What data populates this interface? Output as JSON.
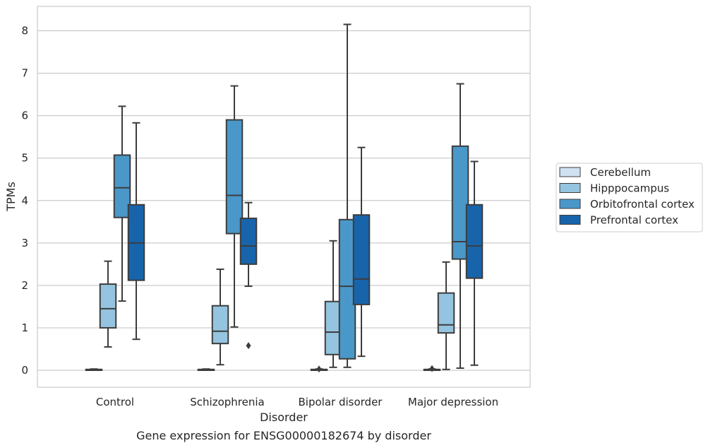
{
  "caption": "Gene expression for ENSG00000182674 by disorder",
  "chart_data": {
    "type": "box",
    "xlabel": "Disorder",
    "ylabel": "TPMs",
    "ylim": [
      -0.4,
      8.6
    ],
    "yticks": [
      0,
      1,
      2,
      3,
      4,
      5,
      6,
      7,
      8
    ],
    "grid": "horizontal",
    "legend_position": "right",
    "categories": [
      "Control",
      "Schizophrenia",
      "Bipolar disorder",
      "Major depression"
    ],
    "series": [
      {
        "name": "Cerebellum",
        "color": "#d0e1f2",
        "boxes": [
          {
            "whislo": 0.0,
            "q1": 0.0,
            "med": 0.01,
            "q3": 0.02,
            "whishi": 0.03,
            "fliers": []
          },
          {
            "whislo": 0.0,
            "q1": 0.0,
            "med": 0.01,
            "q3": 0.02,
            "whishi": 0.03,
            "fliers": []
          },
          {
            "whislo": 0.0,
            "q1": 0.0,
            "med": 0.01,
            "q3": 0.02,
            "whishi": 0.03,
            "fliers": [
              0.03
            ]
          },
          {
            "whislo": 0.0,
            "q1": 0.0,
            "med": 0.01,
            "q3": 0.02,
            "whishi": 0.03,
            "fliers": [
              0.04
            ]
          }
        ]
      },
      {
        "name": "Hipppocampus",
        "color": "#94c4df",
        "boxes": [
          {
            "whislo": 0.55,
            "q1": 1.0,
            "med": 1.45,
            "q3": 2.03,
            "whishi": 2.57,
            "fliers": []
          },
          {
            "whislo": 0.13,
            "q1": 0.63,
            "med": 0.92,
            "q3": 1.52,
            "whishi": 2.38,
            "fliers": []
          },
          {
            "whislo": 0.07,
            "q1": 0.37,
            "med": 0.9,
            "q3": 1.62,
            "whishi": 3.05,
            "fliers": []
          },
          {
            "whislo": 0.02,
            "q1": 0.88,
            "med": 1.07,
            "q3": 1.82,
            "whishi": 2.55,
            "fliers": []
          }
        ]
      },
      {
        "name": "Orbitofrontal cortex",
        "color": "#4a98c9",
        "boxes": [
          {
            "whislo": 1.63,
            "q1": 3.6,
            "med": 4.3,
            "q3": 5.07,
            "whishi": 6.22,
            "fliers": []
          },
          {
            "whislo": 1.02,
            "q1": 3.22,
            "med": 4.12,
            "q3": 5.9,
            "whishi": 6.7,
            "fliers": []
          },
          {
            "whislo": 0.07,
            "q1": 0.27,
            "med": 1.98,
            "q3": 3.55,
            "whishi": 8.15,
            "fliers": []
          },
          {
            "whislo": 0.05,
            "q1": 2.62,
            "med": 3.03,
            "q3": 5.28,
            "whishi": 6.75,
            "fliers": []
          }
        ]
      },
      {
        "name": "Prefrontal cortex",
        "color": "#1764ab",
        "boxes": [
          {
            "whislo": 0.73,
            "q1": 2.12,
            "med": 3.0,
            "q3": 3.9,
            "whishi": 5.83,
            "fliers": []
          },
          {
            "whislo": 1.98,
            "q1": 2.5,
            "med": 2.93,
            "q3": 3.58,
            "whishi": 3.95,
            "fliers": [
              0.58
            ]
          },
          {
            "whislo": 0.33,
            "q1": 1.55,
            "med": 2.15,
            "q3": 3.66,
            "whishi": 5.25,
            "fliers": []
          },
          {
            "whislo": 0.12,
            "q1": 2.17,
            "med": 2.93,
            "q3": 3.9,
            "whishi": 4.92,
            "fliers": []
          }
        ]
      }
    ]
  },
  "colors": {
    "line": "#3d3d3d",
    "grid": "#cccccc",
    "frame": "#cccccc"
  }
}
